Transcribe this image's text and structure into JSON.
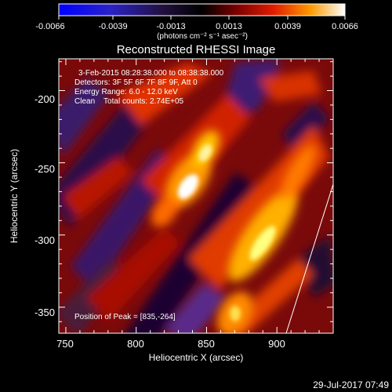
{
  "colorbar": {
    "ticks": [
      "-0.0066",
      "-0.0039",
      "-0.0013",
      "0.0013",
      "0.0039",
      "0.0066"
    ],
    "units_label": "(photons cm⁻² s⁻¹ asec⁻²)"
  },
  "plot": {
    "title": "Reconstructed RHESSI Image",
    "xlabel": "Heliocentric X (arcsec)",
    "ylabel": "Heliocentric Y (arcsec)",
    "x_ticks": [
      "750",
      "800",
      "850",
      "900"
    ],
    "y_ticks": [
      "-200",
      "-250",
      "-300",
      "-350"
    ],
    "xlim": [
      745,
      940
    ],
    "ylim": [
      -368,
      -178
    ]
  },
  "annotations": {
    "line1": "3-Feb-2015 08:28:38.000 to 08:38:38.000",
    "line2": "Detectors: 3F 5F 6F 7F 8F 9F, Att 0",
    "line3": "Energy Range: 6.0 - 12.0 keV",
    "line4": "Clean    Total counts: 2.74E+05",
    "peak": "Position of Peak = [835,-264]"
  },
  "footer": {
    "timestamp": "29-Jul-2017 07:49"
  },
  "chart_data": {
    "type": "heatmap",
    "title": "Reconstructed RHESSI Image",
    "xlabel": "Heliocentric X (arcsec)",
    "ylabel": "Heliocentric Y (arcsec)",
    "xlim": [
      745,
      940
    ],
    "ylim": [
      -368,
      -178
    ],
    "clim": [
      -0.0066,
      0.0066
    ],
    "peak": [
      835,
      -264
    ],
    "colorscale": [
      "#0000ff",
      "#3a2a9a",
      "#000000",
      "#7a0000",
      "#e02000",
      "#ff8a00",
      "#ffffff"
    ]
  }
}
